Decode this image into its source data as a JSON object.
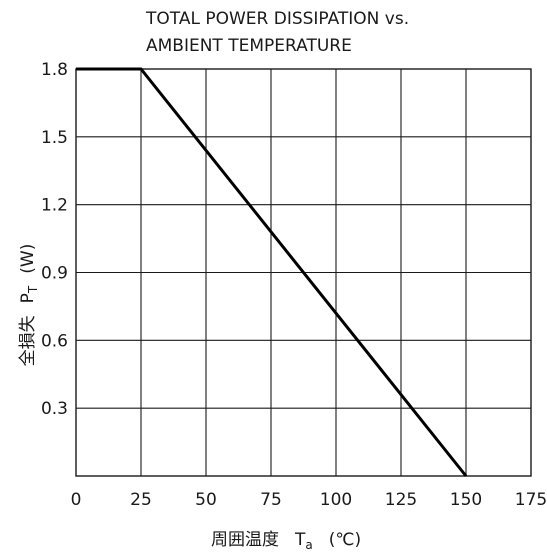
{
  "chart_data": {
    "type": "line",
    "title_line1": "TOTAL POWER DISSIPATION vs.",
    "title_line2": "AMBIENT TEMPERATURE",
    "ylabel": "全損失　PT　(W)",
    "ylabel_jp": "全損失",
    "ylabel_sym": "P",
    "ylabel_sub": "T",
    "ylabel_unit": "(W)",
    "xlabel": "周囲温度　Ta　(℃)",
    "xlabel_jp": "周囲温度",
    "xlabel_sym": "T",
    "xlabel_sub": "a",
    "xlabel_unit": "(℃)",
    "xlim": [
      0,
      175
    ],
    "ylim": [
      0,
      1.8
    ],
    "x_ticks": [
      0,
      25,
      50,
      75,
      100,
      125,
      150,
      175
    ],
    "x_tick_labels": [
      "0",
      "25",
      "50",
      "75",
      "100",
      "125",
      "150",
      "175"
    ],
    "y_ticks": [
      0.3,
      0.6,
      0.9,
      1.2,
      1.5,
      1.8
    ],
    "y_tick_labels": [
      "0.3",
      "0.6",
      "0.9",
      "1.2",
      "1.5",
      "1.8"
    ],
    "grid": true,
    "series": [
      {
        "x": [
          0,
          25,
          150
        ],
        "y": [
          1.8,
          1.8,
          0
        ]
      }
    ]
  }
}
